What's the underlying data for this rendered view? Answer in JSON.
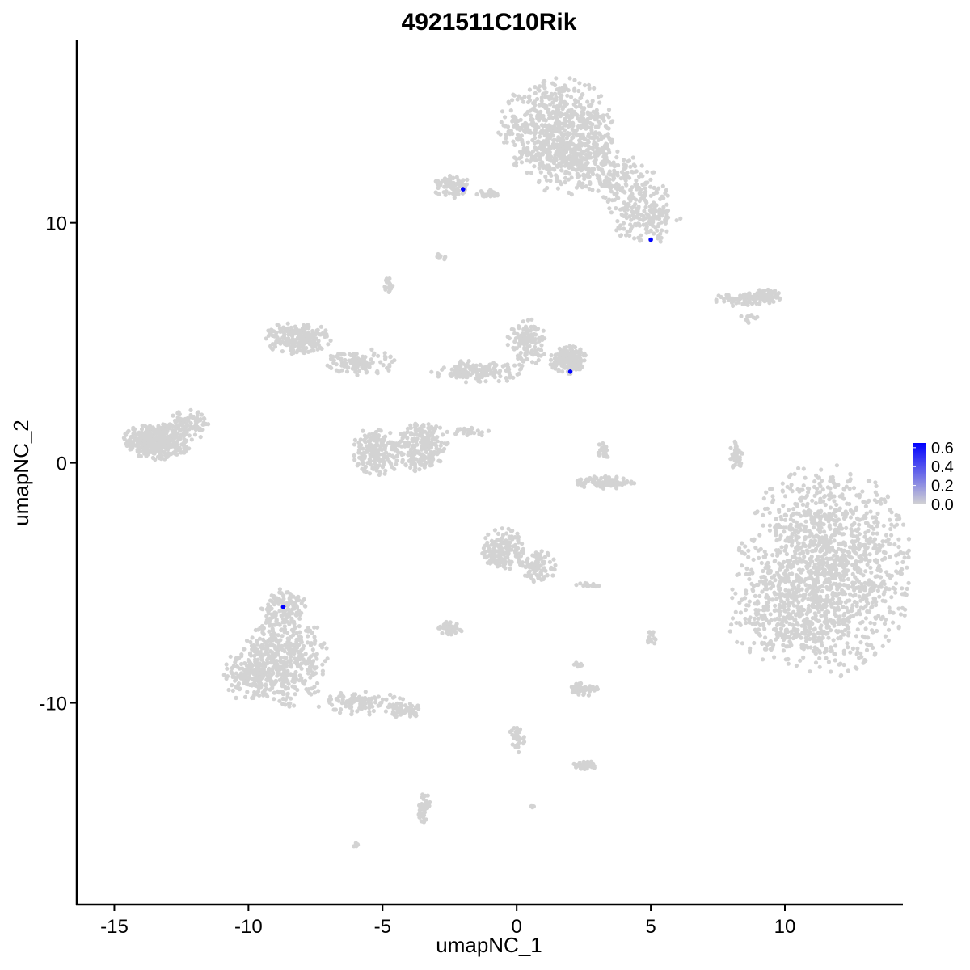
{
  "chart_data": {
    "type": "scatter",
    "title": "4921511C10Rik",
    "xlabel": "umapNC_1",
    "ylabel": "umapNC_2",
    "xlim": [
      -16.4,
      14.4
    ],
    "ylim": [
      -18.4,
      17.6
    ],
    "x_ticks": [
      -15,
      -10,
      -5,
      0,
      5,
      10
    ],
    "x_tick_labels": [
      "-15",
      "-10",
      "-5",
      "0",
      "5",
      "10"
    ],
    "y_ticks": [
      -10,
      0,
      10
    ],
    "y_tick_labels": [
      "-10",
      "0",
      "10"
    ],
    "grid": false,
    "legend_placement": "right",
    "color_scale": {
      "low_color": "#d3d3d3",
      "high_color": "#0000ff",
      "min": 0.0,
      "max": 0.65,
      "ticks": [
        0.0,
        0.2,
        0.4,
        0.6
      ],
      "tick_labels": [
        "0.0",
        "0.2",
        "0.4",
        "0.6"
      ]
    },
    "background_color": "#d3d3d3",
    "clusters": [
      {
        "cx": 11.5,
        "cy": -4.5,
        "rx": 3.3,
        "ry": 4.5,
        "n": 1400
      },
      {
        "cx": 9.8,
        "cy": -6.3,
        "rx": 2.0,
        "ry": 2.3,
        "n": 200
      },
      {
        "cx": 1.5,
        "cy": 13.9,
        "rx": 2.2,
        "ry": 2.2,
        "n": 700
      },
      {
        "cx": 2.2,
        "cy": 12.4,
        "rx": 1.8,
        "ry": 1.4,
        "n": 200
      },
      {
        "cx": 4.8,
        "cy": 10.4,
        "rx": 1.4,
        "ry": 1.3,
        "n": 200
      },
      {
        "cx": 3.8,
        "cy": 11.8,
        "rx": 1.5,
        "ry": 1.0,
        "n": 120
      },
      {
        "cx": -8.6,
        "cy": -8.2,
        "rx": 1.6,
        "ry": 2.1,
        "n": 420
      },
      {
        "cx": -9.8,
        "cy": -8.8,
        "rx": 1.2,
        "ry": 1.2,
        "n": 180
      },
      {
        "cx": -8.7,
        "cy": -6.0,
        "rx": 0.9,
        "ry": 0.8,
        "n": 120
      },
      {
        "cx": -5.8,
        "cy": -10.0,
        "rx": 1.7,
        "ry": 0.5,
        "n": 110
      },
      {
        "cx": -4.2,
        "cy": -10.3,
        "rx": 0.8,
        "ry": 0.3,
        "n": 60
      },
      {
        "cx": -13.4,
        "cy": 0.9,
        "rx": 1.3,
        "ry": 0.8,
        "n": 420
      },
      {
        "cx": -12.2,
        "cy": 1.6,
        "rx": 0.9,
        "ry": 0.6,
        "n": 90
      },
      {
        "cx": -5.2,
        "cy": 0.5,
        "rx": 1.0,
        "ry": 1.0,
        "n": 190
      },
      {
        "cx": -3.5,
        "cy": 0.7,
        "rx": 1.0,
        "ry": 1.1,
        "n": 210
      },
      {
        "cx": -8.2,
        "cy": 5.2,
        "rx": 1.3,
        "ry": 0.7,
        "n": 200
      },
      {
        "cx": -5.8,
        "cy": 4.2,
        "rx": 1.3,
        "ry": 0.6,
        "n": 120
      },
      {
        "cx": -1.4,
        "cy": 3.8,
        "rx": 1.8,
        "ry": 0.5,
        "n": 140
      },
      {
        "cx": 0.4,
        "cy": 5.0,
        "rx": 0.8,
        "ry": 1.0,
        "n": 130
      },
      {
        "cx": 1.9,
        "cy": 4.3,
        "rx": 0.7,
        "ry": 0.6,
        "n": 160
      },
      {
        "cx": -0.5,
        "cy": -3.6,
        "rx": 0.8,
        "ry": 0.9,
        "n": 170
      },
      {
        "cx": 0.8,
        "cy": -4.3,
        "rx": 0.7,
        "ry": 0.7,
        "n": 90
      },
      {
        "cx": -2.4,
        "cy": 11.5,
        "rx": 0.7,
        "ry": 0.5,
        "n": 80
      },
      {
        "cx": -1.1,
        "cy": 11.2,
        "rx": 0.5,
        "ry": 0.2,
        "n": 30
      },
      {
        "cx": 8.6,
        "cy": 6.8,
        "rx": 1.3,
        "ry": 0.3,
        "n": 90
      },
      {
        "cx": 9.2,
        "cy": 7.0,
        "rx": 0.6,
        "ry": 0.25,
        "n": 40
      },
      {
        "cx": 3.3,
        "cy": -0.8,
        "rx": 1.1,
        "ry": 0.3,
        "n": 90
      },
      {
        "cx": 3.2,
        "cy": 0.5,
        "rx": 0.3,
        "ry": 0.5,
        "n": 25
      },
      {
        "cx": 8.2,
        "cy": 0.3,
        "rx": 0.25,
        "ry": 0.7,
        "n": 40
      },
      {
        "cx": -2.5,
        "cy": -6.9,
        "rx": 0.5,
        "ry": 0.3,
        "n": 50
      },
      {
        "cx": 2.5,
        "cy": -9.4,
        "rx": 0.6,
        "ry": 0.3,
        "n": 50
      },
      {
        "cx": 2.5,
        "cy": -12.6,
        "rx": 0.5,
        "ry": 0.2,
        "n": 35
      },
      {
        "cx": -3.5,
        "cy": -14.4,
        "rx": 0.3,
        "ry": 0.7,
        "n": 45
      },
      {
        "cx": -4.8,
        "cy": 7.4,
        "rx": 0.2,
        "ry": 0.3,
        "n": 20
      },
      {
        "cx": -2.8,
        "cy": 8.6,
        "rx": 0.2,
        "ry": 0.15,
        "n": 12
      },
      {
        "cx": -1.8,
        "cy": 1.3,
        "rx": 0.8,
        "ry": 0.2,
        "n": 25
      },
      {
        "cx": 0.0,
        "cy": -11.5,
        "rx": 0.3,
        "ry": 0.6,
        "n": 35
      },
      {
        "cx": 5.0,
        "cy": -7.3,
        "rx": 0.2,
        "ry": 0.3,
        "n": 15
      },
      {
        "cx": 2.6,
        "cy": -5.1,
        "rx": 0.5,
        "ry": 0.1,
        "n": 15
      },
      {
        "cx": 2.3,
        "cy": -8.4,
        "rx": 0.2,
        "ry": 0.2,
        "n": 10
      },
      {
        "cx": 8.7,
        "cy": 6.0,
        "rx": 0.4,
        "ry": 0.2,
        "n": 10
      },
      {
        "cx": -6.0,
        "cy": -15.9,
        "rx": 0.1,
        "ry": 0.1,
        "n": 5
      },
      {
        "cx": 0.6,
        "cy": -14.3,
        "rx": 0.1,
        "ry": 0.1,
        "n": 4
      }
    ],
    "expressing_points": [
      {
        "x": -2.0,
        "y": 11.4,
        "value": 0.65
      },
      {
        "x": 5.0,
        "y": 9.3,
        "value": 0.65
      },
      {
        "x": 2.0,
        "y": 3.8,
        "value": 0.65
      },
      {
        "x": -8.7,
        "y": -6.0,
        "value": 0.65
      }
    ]
  }
}
